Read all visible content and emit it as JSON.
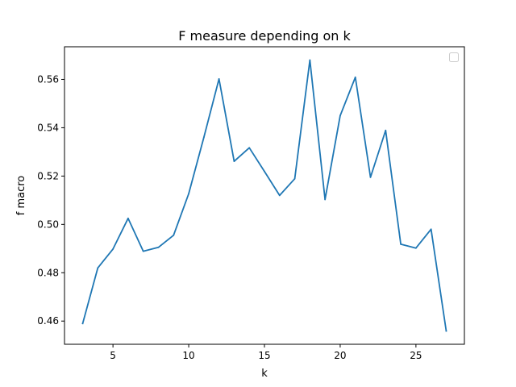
{
  "chart_data": {
    "type": "line",
    "title": "F measure depending on k",
    "xlabel": "k",
    "ylabel": "f macro",
    "xlim": [
      1.8,
      28.2
    ],
    "ylim": [
      0.4504,
      0.5735
    ],
    "xticks": [
      5,
      10,
      15,
      20,
      25
    ],
    "yticks": [
      0.46,
      0.48,
      0.5,
      0.52,
      0.54,
      0.56
    ],
    "ytick_labels": [
      "0.46",
      "0.48",
      "0.50",
      "0.52",
      "0.54",
      "0.56"
    ],
    "grid": false,
    "legend": "top-right (empty)",
    "series": [
      {
        "color": "#1f77b4",
        "x": [
          3,
          4,
          5,
          6,
          7,
          8,
          9,
          10,
          11,
          12,
          13,
          14,
          15,
          16,
          17,
          18,
          19,
          20,
          21,
          22,
          23,
          24,
          25,
          26,
          27
        ],
        "y": [
          0.459,
          0.482,
          0.4898,
          0.5025,
          0.4889,
          0.4905,
          0.4955,
          0.5127,
          0.536,
          0.5602,
          0.5261,
          0.5317,
          0.5219,
          0.512,
          0.5189,
          0.568,
          0.5103,
          0.545,
          0.5609,
          0.5195,
          0.5389,
          0.4918,
          0.4902,
          0.498,
          0.4559
        ]
      }
    ]
  }
}
